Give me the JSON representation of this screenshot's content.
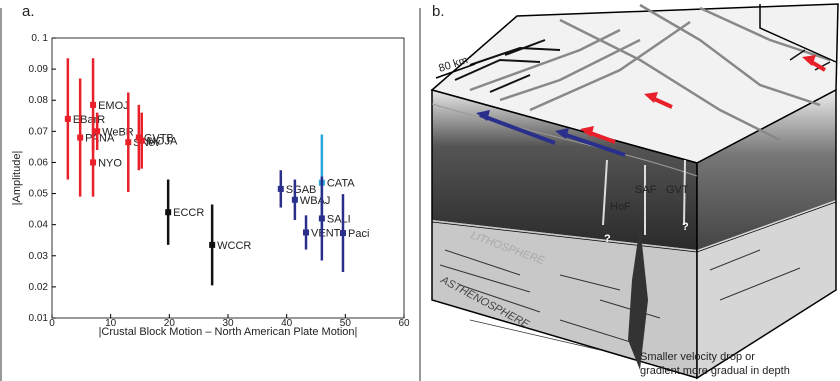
{
  "chart_data": {
    "type": "errorbar",
    "panel_label": "a.",
    "xlabel": "|Crustal Block Motion – North American Plate Motion|",
    "ylabel": "|Amplitude|",
    "xlim": [
      0,
      60
    ],
    "xticks": [
      0,
      10,
      20,
      30,
      40,
      50,
      60
    ],
    "ylim": [
      0.01,
      0.1
    ],
    "yticks": [
      0.01,
      0.02,
      0.03,
      0.04,
      0.05,
      0.06,
      0.07,
      0.08,
      0.09,
      {
        "value": 0.1,
        "label": "0. 1"
      }
    ],
    "points": [
      {
        "label": "EBarR",
        "x": 2.7,
        "y": 0.074,
        "err": 0.0195,
        "color": "#e8202a"
      },
      {
        "label": "PANA",
        "x": 4.8,
        "y": 0.068,
        "err": 0.019,
        "color": "#e8202a"
      },
      {
        "label": "EMOJ",
        "x": 7.0,
        "y": 0.0785,
        "err": 0.015,
        "color": "#e8202a"
      },
      {
        "label": "NYO",
        "x": 7.0,
        "y": 0.06,
        "err": 0.011,
        "color": "#e8202a"
      },
      {
        "label": "WeBR",
        "x": 7.7,
        "y": 0.07,
        "err": 0.006,
        "color": "#e8202a"
      },
      {
        "label": "SNev",
        "x": 13.0,
        "y": 0.0665,
        "err": 0.016,
        "color": "#e8202a"
      },
      {
        "label": "GVTB",
        "x": 14.8,
        "y": 0.068,
        "err": 0.0105,
        "color": "#e8202a"
      },
      {
        "label": "MOJA",
        "x": 15.3,
        "y": 0.067,
        "err": 0.009,
        "color": "#e8202a"
      },
      {
        "label": "ECCR",
        "x": 19.8,
        "y": 0.044,
        "err": 0.0105,
        "color": "#111111"
      },
      {
        "label": "WCCR",
        "x": 27.3,
        "y": 0.0335,
        "err": 0.013,
        "color": "#111111"
      },
      {
        "label": "SGAB",
        "x": 39.0,
        "y": 0.0515,
        "err": 0.006,
        "color": "#2b2f8c"
      },
      {
        "label": "WBAJ",
        "x": 41.4,
        "y": 0.048,
        "err": 0.0065,
        "color": "#2b2f8c"
      },
      {
        "label": "VENT",
        "x": 43.3,
        "y": 0.0375,
        "err": 0.0055,
        "color": "#2b2f8c"
      },
      {
        "label": "CATA",
        "x": 46.0,
        "y": 0.0535,
        "err": 0.0155,
        "color": "#2aa9e0"
      },
      {
        "label": "SALI",
        "x": 46.0,
        "y": 0.042,
        "err": 0.0135,
        "color": "#2b2f8c"
      },
      {
        "label": "Paci",
        "x": 49.6,
        "y": 0.0373,
        "err": 0.0125,
        "color": "#2b2f8c"
      }
    ]
  },
  "diagram": {
    "panel_label": "b.",
    "scale": "80 km",
    "faults": [
      "HoF",
      "SAF",
      "GVT"
    ],
    "unknown": [
      "?",
      "?"
    ],
    "lithosphere": "LITHOSPHERE",
    "asthenosphere": "ASTHENOSPHERE",
    "note": [
      "Smaller velocity drop or",
      "gradient more gradual in depth"
    ]
  }
}
